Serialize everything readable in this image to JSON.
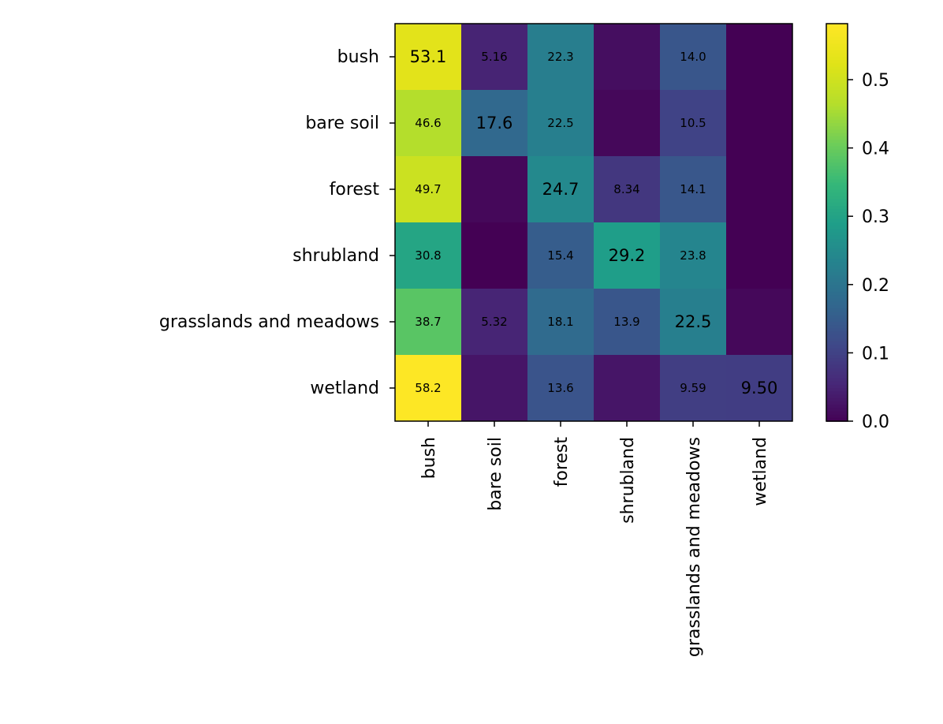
{
  "chart_data": {
    "type": "heatmap",
    "title": "",
    "xlabel": "",
    "ylabel": "",
    "row_labels": [
      "bush",
      "bare soil",
      "forest",
      "shrubland",
      "grasslands and meadows",
      "wetland"
    ],
    "col_labels": [
      "bush",
      "bare soil",
      "forest",
      "shrubland",
      "grasslands and meadows",
      "wetland"
    ],
    "values": [
      [
        0.531,
        0.0516,
        0.223,
        0.02,
        0.14,
        0.0
      ],
      [
        0.466,
        0.176,
        0.225,
        0.01,
        0.105,
        0.0
      ],
      [
        0.497,
        0.01,
        0.247,
        0.0834,
        0.141,
        0.0
      ],
      [
        0.308,
        0.0,
        0.154,
        0.292,
        0.238,
        0.0
      ],
      [
        0.387,
        0.0532,
        0.181,
        0.139,
        0.225,
        0.01
      ],
      [
        0.582,
        0.03,
        0.136,
        0.03,
        0.0959,
        0.095
      ]
    ],
    "cell_labels": [
      [
        "53.1",
        "5.16",
        "22.3",
        "",
        "14.0",
        ""
      ],
      [
        "46.6",
        "17.6",
        "22.5",
        "",
        "10.5",
        ""
      ],
      [
        "49.7",
        "",
        "24.7",
        "8.34",
        "14.1",
        ""
      ],
      [
        "30.8",
        "",
        "15.4",
        "29.2",
        "23.8",
        ""
      ],
      [
        "38.7",
        "5.32",
        "18.1",
        "13.9",
        "22.5",
        ""
      ],
      [
        "58.2",
        "",
        "13.6",
        "",
        "9.59",
        "9.50"
      ]
    ],
    "colorbar": {
      "min": 0.0,
      "max": 0.582,
      "colormap": "viridis",
      "ticks": [
        0.0,
        0.1,
        0.2,
        0.3,
        0.4,
        0.5
      ],
      "tick_labels": [
        "0.0",
        "0.1",
        "0.2",
        "0.3",
        "0.4",
        "0.5"
      ]
    }
  }
}
